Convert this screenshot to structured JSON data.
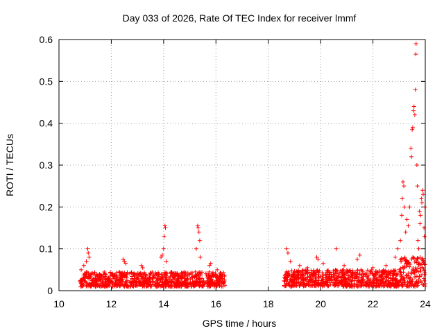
{
  "chart_data": {
    "type": "scatter",
    "title": "Day 033 of 2026, Rate Of TEC Index for receiver lmmf",
    "xlabel": "GPS time / hours",
    "ylabel": "ROTI / TECUs",
    "xlim": [
      10,
      24
    ],
    "ylim": [
      0,
      0.6
    ],
    "xticks": [
      "10",
      "12",
      "14",
      "16",
      "18",
      "20",
      "22",
      "24"
    ],
    "yticks": [
      "0",
      "0.1",
      "0.2",
      "0.3",
      "0.4",
      "0.5",
      "0.6"
    ],
    "grid": true,
    "marker": "+",
    "marker_color": "#ff0000",
    "series": [
      {
        "points": [
          [
            10.85,
            0.05
          ],
          [
            10.95,
            0.06
          ],
          [
            11.05,
            0.07
          ],
          [
            11.1,
            0.1
          ],
          [
            11.12,
            0.09
          ],
          [
            11.15,
            0.08
          ],
          [
            12.45,
            0.075
          ],
          [
            12.5,
            0.07
          ],
          [
            12.55,
            0.065
          ],
          [
            13.15,
            0.06
          ],
          [
            13.2,
            0.055
          ],
          [
            13.9,
            0.08
          ],
          [
            13.95,
            0.085
          ],
          [
            14.0,
            0.1
          ],
          [
            14.02,
            0.13
          ],
          [
            14.05,
            0.155
          ],
          [
            14.07,
            0.15
          ],
          [
            14.1,
            0.07
          ],
          [
            15.25,
            0.1
          ],
          [
            15.3,
            0.155
          ],
          [
            15.32,
            0.15
          ],
          [
            15.35,
            0.14
          ],
          [
            15.38,
            0.12
          ],
          [
            15.4,
            0.08
          ],
          [
            15.75,
            0.06
          ],
          [
            15.8,
            0.065
          ],
          [
            16.05,
            0.05
          ],
          [
            18.7,
            0.1
          ],
          [
            18.75,
            0.09
          ],
          [
            18.85,
            0.07
          ],
          [
            19.2,
            0.06
          ],
          [
            19.5,
            0.055
          ],
          [
            19.85,
            0.08
          ],
          [
            19.9,
            0.075
          ],
          [
            20.1,
            0.065
          ],
          [
            20.6,
            0.1
          ],
          [
            20.9,
            0.06
          ],
          [
            21.4,
            0.075
          ],
          [
            21.5,
            0.085
          ],
          [
            22.0,
            0.055
          ],
          [
            22.5,
            0.06
          ],
          [
            22.85,
            0.08
          ],
          [
            22.95,
            0.1
          ],
          [
            23.05,
            0.12
          ],
          [
            23.1,
            0.18
          ],
          [
            23.12,
            0.22
          ],
          [
            23.15,
            0.26
          ],
          [
            23.18,
            0.25
          ],
          [
            23.2,
            0.2
          ],
          [
            23.25,
            0.14
          ],
          [
            23.3,
            0.17
          ],
          [
            23.35,
            0.155
          ],
          [
            23.4,
            0.2
          ],
          [
            23.45,
            0.34
          ],
          [
            23.47,
            0.32
          ],
          [
            23.5,
            0.385
          ],
          [
            23.52,
            0.39
          ],
          [
            23.55,
            0.43
          ],
          [
            23.57,
            0.44
          ],
          [
            23.6,
            0.42
          ],
          [
            23.62,
            0.48
          ],
          [
            23.64,
            0.565
          ],
          [
            23.65,
            0.59
          ],
          [
            23.68,
            0.3
          ],
          [
            23.7,
            0.25
          ],
          [
            23.72,
            0.12
          ],
          [
            23.75,
            0.1
          ],
          [
            23.78,
            0.19
          ],
          [
            23.8,
            0.16
          ],
          [
            23.82,
            0.18
          ],
          [
            23.85,
            0.22
          ],
          [
            23.87,
            0.21
          ],
          [
            23.9,
            0.24
          ],
          [
            23.92,
            0.23
          ],
          [
            23.95,
            0.15
          ],
          [
            23.97,
            0.13
          ],
          [
            23.99,
            0.2
          ]
        ],
        "dense_bands": [
          {
            "x": [
              10.8,
              16.35
            ],
            "y": [
              0.01,
              0.045
            ]
          },
          {
            "x": [
              18.6,
              23.0
            ],
            "y": [
              0.01,
              0.05
            ]
          },
          {
            "x": [
              23.0,
              24.0
            ],
            "y": [
              0.01,
              0.08
            ]
          }
        ]
      }
    ]
  }
}
